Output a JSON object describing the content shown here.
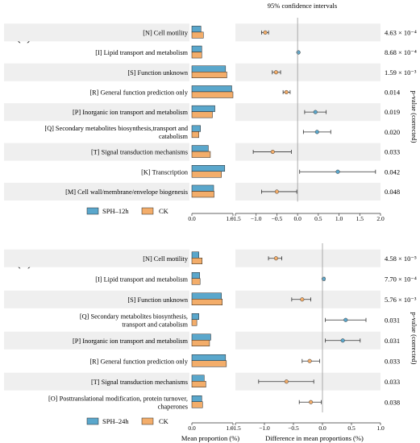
{
  "ci_header": "95% confidence intervals",
  "pvalue_axis_label": "p-value (corrected)",
  "mean_xlabel": "Mean proportion (%)",
  "diff_xlabel": "Difference in mean proportions (%)",
  "colors": {
    "treatment": "#5aa7cc",
    "control": "#f3ad6a",
    "band": "#efefef"
  },
  "chart_data": [
    {
      "type": "bar",
      "panel_label": "(a)",
      "legend": [
        "SPH–12h",
        "CK"
      ],
      "categories": [
        "[N] Cell motility",
        "[I] Lipid transport and metabolism",
        "[S] Function unknown",
        "[R] General function prediction only",
        "[P] Inorganic ion transport and metabolism",
        "[Q] Secondary metabolites biosynthesis,transport and catabolism",
        "[T] Signal transduction mechanisms",
        "[K] Transcription",
        "[M] Cell wall/membrane/envelope biogenesis"
      ],
      "mean_xticks": [
        "0.0",
        "1.0"
      ],
      "mean_xlim": [
        0,
        1.0
      ],
      "series": [
        {
          "name": "SPH–12h",
          "values": [
            0.22,
            0.24,
            0.82,
            0.97,
            0.56,
            0.21,
            0.4,
            0.8,
            0.53
          ]
        },
        {
          "name": "CK",
          "values": [
            0.28,
            0.24,
            0.85,
            1.0,
            0.5,
            0.17,
            0.45,
            0.72,
            0.54
          ]
        }
      ],
      "diff_xticks": [
        "−1.5",
        "−1.0",
        "−0.5",
        "0.0",
        "0.5",
        "1.0",
        "1.5",
        "2.0"
      ],
      "diff_xlim": [
        -1.5,
        2.0
      ],
      "diff": [
        -0.78,
        0.02,
        -0.52,
        -0.27,
        0.43,
        0.47,
        -0.6,
        0.97,
        -0.5
      ],
      "ci_low": [
        -0.87,
        0.0,
        -0.61,
        -0.35,
        0.17,
        0.14,
        -1.07,
        0.05,
        -0.87
      ],
      "ci_high": [
        -0.7,
        0.03,
        -0.41,
        -0.18,
        0.69,
        0.8,
        -0.15,
        1.88,
        -0.02
      ],
      "pvalues": [
        "4.63 × 10⁻⁴",
        "8.68 × 10⁻⁴",
        "1.59 × 10⁻³",
        "0.014",
        "0.019",
        "0.020",
        "0.033",
        "0.042",
        "0.048"
      ]
    },
    {
      "type": "bar",
      "panel_label": "(b)",
      "legend": [
        "SPH–24h",
        "CK"
      ],
      "categories": [
        "[N] Cell motility",
        "[I] Lipid transport and metabolism",
        "[S] Function unknown",
        "[Q] Secondary metabolites biosynthesis, transport and catabolism",
        "[P] Inorganic ion transport and metabolism",
        "[R] General function prediction only",
        "[T] Signal transduction mechanisms",
        "[O] Posttranslational modification, protein turnover, chaperones"
      ],
      "mean_xticks": [
        "0.0",
        "1.0"
      ],
      "mean_xlim": [
        0,
        1.0
      ],
      "series": [
        {
          "name": "SPH–24h",
          "values": [
            0.17,
            0.19,
            0.72,
            0.17,
            0.46,
            0.82,
            0.3,
            0.24
          ]
        },
        {
          "name": "CK",
          "values": [
            0.25,
            0.2,
            0.74,
            0.12,
            0.43,
            0.84,
            0.34,
            0.26
          ]
        }
      ],
      "diff_xticks": [
        "−1.5",
        "−1.0",
        "−0.5",
        "0.0",
        "0.5",
        "1.0"
      ],
      "diff_xlim": [
        -1.5,
        1.0
      ],
      "diff": [
        -0.8,
        0.02,
        -0.35,
        0.4,
        0.35,
        -0.22,
        -0.62,
        -0.2
      ],
      "ci_low": [
        -0.93,
        0.0,
        -0.53,
        0.05,
        0.05,
        -0.35,
        -1.1,
        -0.4
      ],
      "ci_high": [
        -0.7,
        0.04,
        -0.2,
        0.75,
        0.65,
        -0.05,
        -0.15,
        -0.02
      ],
      "pvalues": [
        "4.58 × 10⁻⁵",
        "7.70 × 10⁻⁴",
        "5.76 × 10⁻³",
        "0.031",
        "0.031",
        "0.033",
        "0.033",
        "0.038"
      ]
    }
  ]
}
